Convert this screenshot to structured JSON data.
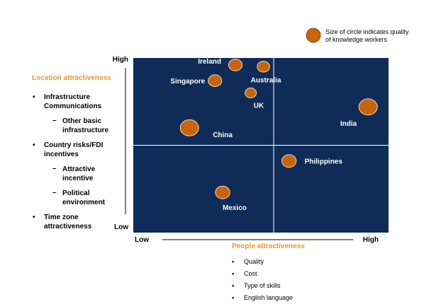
{
  "chart_data": {
    "type": "scatter",
    "subtype": "bubble",
    "ylabel": "Location attractiveness",
    "xlabel": "People attractiveness",
    "y_ticks": [
      "Low",
      "High"
    ],
    "x_ticks": [
      "Low",
      "High"
    ],
    "xlim": [
      0,
      100
    ],
    "ylim": [
      0,
      100
    ],
    "quadrant_split": {
      "x": 55,
      "y": 50
    },
    "legend_note": "Size of circle indicates quality of knowledge workers",
    "points": [
      {
        "label": "Ireland",
        "x": 40,
        "y": 96,
        "size": 3
      },
      {
        "label": "Australia",
        "x": 51,
        "y": 95,
        "size": 2.5
      },
      {
        "label": "Singapore",
        "x": 32,
        "y": 87,
        "size": 3
      },
      {
        "label": "UK",
        "x": 46,
        "y": 80,
        "size": 2
      },
      {
        "label": "India",
        "x": 92,
        "y": 72,
        "size": 6
      },
      {
        "label": "China",
        "x": 22,
        "y": 60,
        "size": 6
      },
      {
        "label": "Philippines",
        "x": 61,
        "y": 41,
        "size": 3.5
      },
      {
        "label": "Mexico",
        "x": 35,
        "y": 23,
        "size": 3.5
      }
    ]
  },
  "y_factors": {
    "items": [
      {
        "text": "Infrastructure Communications",
        "subs": [
          "Other basic infrastructure"
        ]
      },
      {
        "text": "Country risks/FDI incentives",
        "subs": [
          "Attractive incentive",
          "Political environment"
        ]
      },
      {
        "text": "Time zone attractiveness",
        "subs": []
      }
    ]
  },
  "x_factors": [
    "Quality",
    "Cost",
    "Type of skills",
    "English language"
  ],
  "colors": {
    "plot_bg": "#0e2c57",
    "bubble": "#c8640c",
    "bubble_edge": "#f0d8b8",
    "title": "#e8963a"
  }
}
